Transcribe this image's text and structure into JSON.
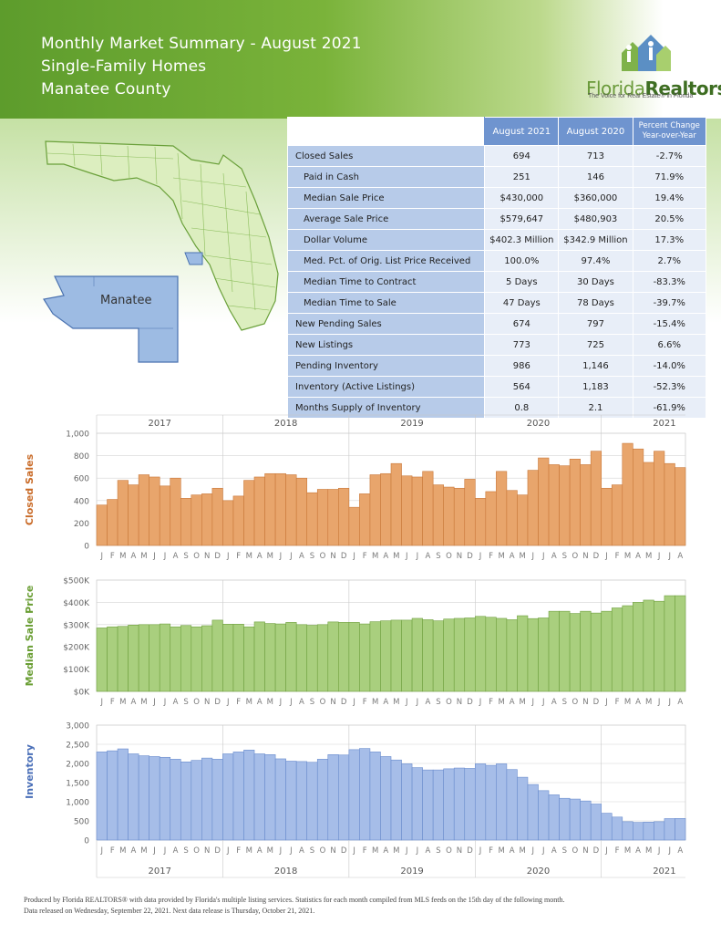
{
  "header": {
    "title_line1": "Monthly Market Summary - August 2021",
    "title_line2": "Single-Family Homes",
    "title_line3": "Manatee County",
    "logo_name_a": "Florida",
    "logo_name_b": "Realtors",
    "logo_mark": "®",
    "logo_tagline": "The Voice for Real Estate® in Florida",
    "logo_icon": "houses-people-icon"
  },
  "map": {
    "highlight_label": "Manatee",
    "highlight_color": "#9dbbe3",
    "state_color": "#dceebf"
  },
  "table": {
    "columns": [
      "August 2021",
      "August 2020",
      "Percent Change Year-over-Year"
    ],
    "rows": [
      {
        "label": "Closed Sales",
        "a": "694",
        "b": "713",
        "c": "-2.7%",
        "indent": false
      },
      {
        "label": "Paid in Cash",
        "a": "251",
        "b": "146",
        "c": "71.9%",
        "indent": true
      },
      {
        "label": "Median Sale Price",
        "a": "$430,000",
        "b": "$360,000",
        "c": "19.4%",
        "indent": true
      },
      {
        "label": "Average Sale Price",
        "a": "$579,647",
        "b": "$480,903",
        "c": "20.5%",
        "indent": true
      },
      {
        "label": "Dollar Volume",
        "a": "$402.3 Million",
        "b": "$342.9 Million",
        "c": "17.3%",
        "indent": true
      },
      {
        "label": "Med. Pct. of Orig. List Price Received",
        "a": "100.0%",
        "b": "97.4%",
        "c": "2.7%",
        "indent": true
      },
      {
        "label": "Median Time to Contract",
        "a": "5 Days",
        "b": "30 Days",
        "c": "-83.3%",
        "indent": true
      },
      {
        "label": "Median Time to Sale",
        "a": "47 Days",
        "b": "78 Days",
        "c": "-39.7%",
        "indent": true
      },
      {
        "label": "New Pending Sales",
        "a": "674",
        "b": "797",
        "c": "-15.4%",
        "indent": false
      },
      {
        "label": "New Listings",
        "a": "773",
        "b": "725",
        "c": "6.6%",
        "indent": false
      },
      {
        "label": "Pending Inventory",
        "a": "986",
        "b": "1,146",
        "c": "-14.0%",
        "indent": false
      },
      {
        "label": "Inventory (Active Listings)",
        "a": "564",
        "b": "1,183",
        "c": "-52.3%",
        "indent": false
      },
      {
        "label": "Months Supply of Inventory",
        "a": "0.8",
        "b": "2.1",
        "c": "-61.9%",
        "indent": false
      }
    ]
  },
  "chart_data": [
    {
      "type": "bar",
      "ylabel": "Closed Sales",
      "color": "#e8a56c",
      "edge": "#c9783a",
      "ylim": [
        0,
        1000
      ],
      "yticks": [
        "0",
        "200",
        "400",
        "600",
        "800",
        "1,000"
      ],
      "ytick_values": [
        0,
        200,
        400,
        600,
        800,
        1000
      ],
      "years": [
        "2017",
        "2018",
        "2019",
        "2020",
        "2021"
      ],
      "month_letters": [
        "J",
        "F",
        "M",
        "A",
        "M",
        "J",
        "J",
        "A",
        "S",
        "O",
        "N",
        "D"
      ],
      "values": [
        360,
        410,
        580,
        540,
        630,
        610,
        530,
        600,
        420,
        450,
        460,
        510,
        400,
        440,
        580,
        610,
        640,
        640,
        630,
        600,
        470,
        500,
        500,
        510,
        340,
        460,
        630,
        640,
        730,
        620,
        610,
        660,
        540,
        520,
        510,
        590,
        420,
        480,
        660,
        490,
        450,
        670,
        780,
        720,
        710,
        770,
        720,
        840,
        510,
        540,
        910,
        860,
        740,
        840,
        730,
        694
      ]
    },
    {
      "type": "bar",
      "ylabel": "Median Sale Price",
      "color": "#a9cf7e",
      "edge": "#6fa03f",
      "ylim": [
        0,
        500000
      ],
      "yticks": [
        "$0K",
        "$100K",
        "$200K",
        "$300K",
        "$400K",
        "$500K"
      ],
      "ytick_values": [
        0,
        100000,
        200000,
        300000,
        400000,
        500000
      ],
      "years": [
        "2017",
        "2018",
        "2019",
        "2020",
        "2021"
      ],
      "month_letters": [
        "J",
        "F",
        "M",
        "A",
        "M",
        "J",
        "J",
        "A",
        "S",
        "O",
        "N",
        "D"
      ],
      "values": [
        285000,
        290000,
        292000,
        298000,
        300000,
        300000,
        303000,
        290000,
        296000,
        290000,
        295000,
        320000,
        302000,
        302000,
        290000,
        312000,
        305000,
        303000,
        310000,
        300000,
        297000,
        300000,
        312000,
        310000,
        310000,
        303000,
        313000,
        317000,
        320000,
        320000,
        328000,
        322000,
        317000,
        325000,
        328000,
        330000,
        337000,
        333000,
        328000,
        322000,
        340000,
        327000,
        330000,
        360000,
        360000,
        350000,
        360000,
        352000,
        360000,
        375000,
        385000,
        400000,
        410000,
        405000,
        430000,
        430000
      ]
    },
    {
      "type": "bar",
      "ylabel": "Inventory",
      "color": "#a6bde8",
      "edge": "#6a8ccd",
      "ylim": [
        0,
        3000
      ],
      "yticks": [
        "0",
        "500",
        "1,000",
        "1,500",
        "2,000",
        "2,500",
        "3,000"
      ],
      "ytick_values": [
        0,
        500,
        1000,
        1500,
        2000,
        2500,
        3000
      ],
      "years": [
        "2017",
        "2018",
        "2019",
        "2020",
        "2021"
      ],
      "month_letters": [
        "J",
        "F",
        "M",
        "A",
        "M",
        "J",
        "J",
        "A",
        "S",
        "O",
        "N",
        "D"
      ],
      "values": [
        2300,
        2330,
        2380,
        2250,
        2200,
        2180,
        2160,
        2110,
        2040,
        2080,
        2140,
        2110,
        2250,
        2300,
        2350,
        2250,
        2230,
        2120,
        2060,
        2050,
        2030,
        2110,
        2230,
        2220,
        2360,
        2390,
        2300,
        2180,
        2090,
        1990,
        1890,
        1830,
        1830,
        1860,
        1880,
        1870,
        1990,
        1950,
        1990,
        1840,
        1640,
        1450,
        1290,
        1180,
        1090,
        1070,
        1020,
        940,
        700,
        600,
        480,
        460,
        470,
        480,
        560,
        564
      ]
    }
  ],
  "footer": {
    "line1": "Produced by Florida REALTORS® with data provided by Florida's multiple listing services. Statistics for each month compiled from MLS feeds on the 15th day of the following month.",
    "line2": "Data released on Wednesday, September 22, 2021. Next data release is Thursday, October 21, 2021."
  }
}
